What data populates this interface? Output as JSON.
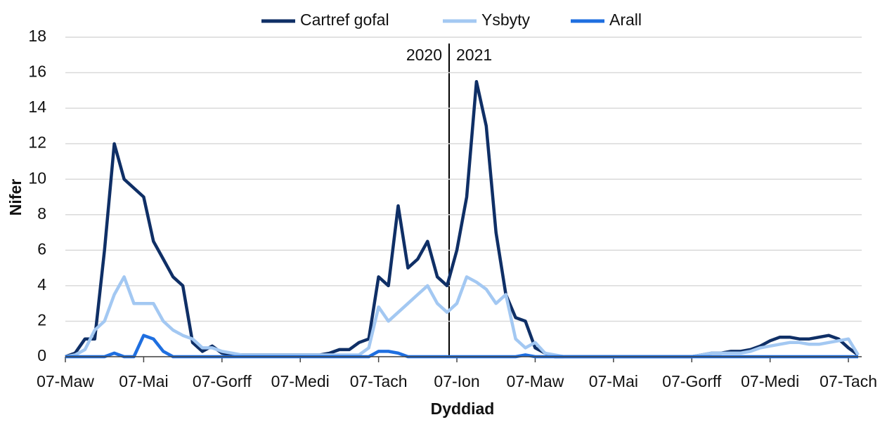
{
  "chart_data": {
    "type": "line",
    "x_label": "Dyddiad",
    "y_label": "Nifer",
    "annotations": [
      "2020",
      "2021"
    ],
    "categories": [
      "07-Maw",
      null,
      null,
      null,
      null,
      null,
      null,
      null,
      "07-Mai",
      null,
      null,
      null,
      null,
      null,
      null,
      null,
      "07-Gorff",
      null,
      null,
      null,
      null,
      null,
      null,
      null,
      "07-Medi",
      null,
      null,
      null,
      null,
      null,
      null,
      null,
      "07-Tach",
      null,
      null,
      null,
      null,
      null,
      null,
      null,
      "07-Ion",
      null,
      null,
      null,
      null,
      null,
      null,
      null,
      "07-Maw",
      null,
      null,
      null,
      null,
      null,
      null,
      null,
      "07-Mai",
      null,
      null,
      null,
      null,
      null,
      null,
      null,
      "07-Gorff",
      null,
      null,
      null,
      null,
      null,
      null,
      null,
      "07-Medi",
      null,
      null,
      null,
      null,
      null,
      null,
      null,
      "07-Tach",
      null
    ],
    "series": [
      {
        "name": "Cartref gofal",
        "color": "#0f2f66",
        "values": [
          0,
          0.2,
          1,
          1,
          6,
          12,
          10,
          9.5,
          9,
          6.5,
          5.5,
          4.5,
          4,
          0.8,
          0.3,
          0.6,
          0.2,
          0.1,
          0.1,
          0.1,
          0.1,
          0.1,
          0.1,
          0.1,
          0.1,
          0.1,
          0.1,
          0.2,
          0.4,
          0.4,
          0.8,
          1,
          4.5,
          4,
          8.5,
          5,
          5.5,
          6.5,
          4.5,
          4,
          6,
          9,
          15.5,
          13,
          7,
          3.5,
          2.2,
          2,
          0.5,
          0.2,
          0,
          0,
          0,
          0,
          0,
          0,
          0,
          0,
          0,
          0,
          0,
          0,
          0,
          0,
          0,
          0.1,
          0.2,
          0.2,
          0.3,
          0.3,
          0.4,
          0.6,
          0.9,
          1.1,
          1.1,
          1,
          1,
          1.1,
          1.2,
          1,
          0.5,
          0.1
        ]
      },
      {
        "name": "Ysbyty",
        "color": "#a3c8f2",
        "values": [
          0,
          0.1,
          0.4,
          1.5,
          2,
          3.5,
          4.5,
          3,
          3,
          3,
          2,
          1.5,
          1.2,
          1,
          0.5,
          0.5,
          0.3,
          0.2,
          0.1,
          0.1,
          0.1,
          0.1,
          0.1,
          0.1,
          0.1,
          0.1,
          0.1,
          0.1,
          0.1,
          0.1,
          0.1,
          0.5,
          2.8,
          2,
          2.5,
          3,
          3.5,
          4,
          3,
          2.5,
          3,
          4.5,
          4.2,
          3.8,
          3,
          3.5,
          1,
          0.5,
          0.8,
          0.2,
          0.1,
          0,
          0,
          0,
          0,
          0,
          0,
          0,
          0,
          0,
          0,
          0,
          0,
          0,
          0,
          0.1,
          0.2,
          0.2,
          0.2,
          0.2,
          0.3,
          0.5,
          0.6,
          0.7,
          0.8,
          0.8,
          0.7,
          0.7,
          0.8,
          0.9,
          1,
          0.1
        ]
      },
      {
        "name": "Arall",
        "color": "#1f6fe0",
        "values": [
          0,
          0,
          0,
          0,
          0,
          0.2,
          0,
          0,
          1.2,
          1,
          0.3,
          0,
          0,
          0,
          0,
          0,
          0,
          0,
          0,
          0,
          0,
          0,
          0,
          0,
          0,
          0,
          0,
          0,
          0,
          0,
          0,
          0,
          0.3,
          0.3,
          0.2,
          0,
          0,
          0,
          0,
          0,
          0,
          0,
          0,
          0,
          0,
          0,
          0,
          0.1,
          0,
          0,
          0,
          0,
          0,
          0,
          0,
          0,
          0,
          0,
          0,
          0,
          0,
          0,
          0,
          0,
          0,
          0,
          0,
          0,
          0,
          0,
          0,
          0,
          0,
          0,
          0,
          0,
          0,
          0,
          0,
          0,
          0,
          0
        ]
      }
    ],
    "ylim": [
      0,
      18
    ],
    "yticks": [
      0,
      2,
      4,
      6,
      8,
      10,
      12,
      14,
      16,
      18
    ],
    "grid": true
  }
}
